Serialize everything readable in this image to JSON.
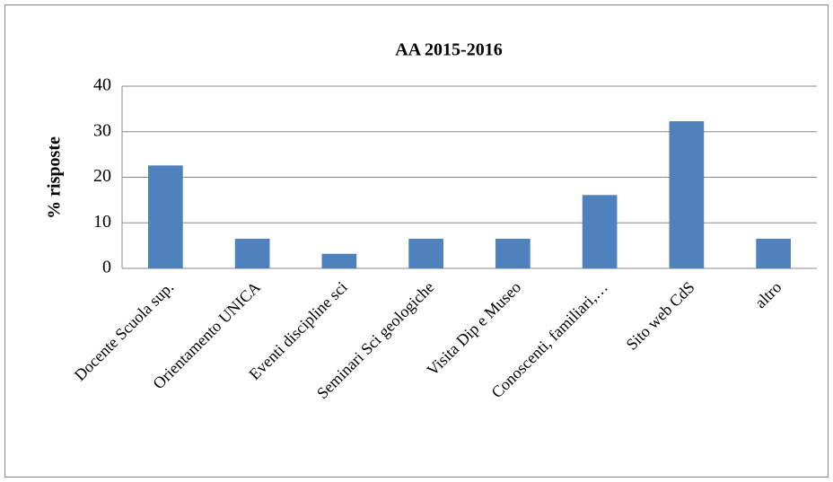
{
  "chart_data": {
    "type": "bar",
    "title": "AA 2015-2016",
    "y_label": "% risposte",
    "categories": [
      "Docente Scuola sup.",
      "Orientamento UNICA",
      "Eventi discipline sci",
      "Seminari Sci geologiche",
      "Visita Dip e Museo",
      "Conoscenti, familiari,…",
      "Sito web CdS",
      "altro"
    ],
    "values": [
      22.6,
      6.5,
      3.2,
      6.5,
      6.5,
      16.1,
      32.3,
      6.5
    ],
    "color": "#4f81bd",
    "ylim": [
      0,
      40
    ],
    "yticks": [
      0,
      10,
      20,
      30,
      40
    ],
    "grid": true
  }
}
